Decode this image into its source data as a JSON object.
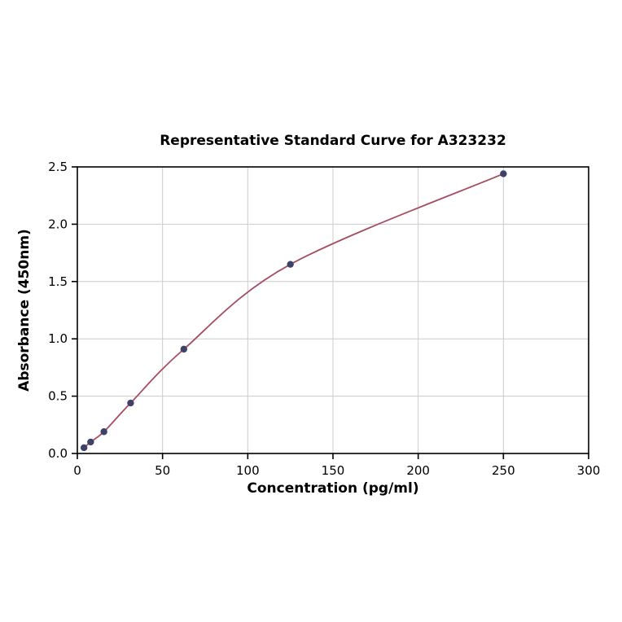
{
  "chart_data": {
    "type": "line",
    "title": "Representative Standard Curve for A323232",
    "xlabel": "Concentration (pg/ml)",
    "ylabel": "Absorbance (450nm)",
    "xlim": [
      0,
      300
    ],
    "ylim": [
      0,
      2.5
    ],
    "x_ticks": [
      0,
      50,
      100,
      150,
      200,
      250,
      300
    ],
    "x_tick_labels": [
      "0",
      "50",
      "100",
      "150",
      "200",
      "250",
      "300"
    ],
    "y_ticks": [
      0.0,
      0.5,
      1.0,
      1.5,
      2.0,
      2.5
    ],
    "y_tick_labels": [
      "0.0",
      "0.5",
      "1.0",
      "1.5",
      "2.0",
      "2.5"
    ],
    "grid": true,
    "legend": "none",
    "points": [
      {
        "x": 3.9,
        "y": 0.05
      },
      {
        "x": 7.8,
        "y": 0.1
      },
      {
        "x": 15.6,
        "y": 0.19
      },
      {
        "x": 31.25,
        "y": 0.44
      },
      {
        "x": 62.5,
        "y": 0.91
      },
      {
        "x": 125,
        "y": 1.65
      },
      {
        "x": 250,
        "y": 2.44
      }
    ],
    "colors": {
      "line": "#a64d62",
      "marker": "#3e4268",
      "grid": "#cccccc",
      "axis": "#000000",
      "background": "#ffffff"
    }
  }
}
